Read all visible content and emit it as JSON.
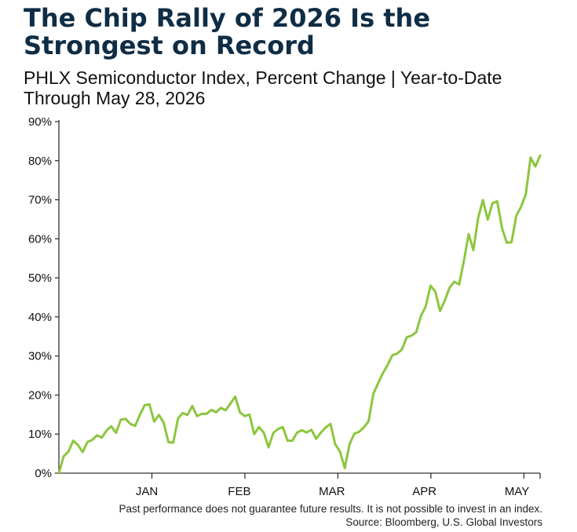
{
  "header": {
    "title": "The Chip Rally of 2026 Is the Strongest on Record",
    "subtitle_line1": "PHLX Semiconductor Index, Percent Change | Year-to-Date",
    "subtitle_line2": "Through May 28, 2026"
  },
  "footer": {
    "disclaimer": "Past performance does not guarantee future results. It is not possible to invest in an index.",
    "source": "Source: Bloomberg, U.S. Global Investors"
  },
  "colors": {
    "line": "#8cc63f",
    "axis": "#333333",
    "title": "#0f2d45"
  },
  "chart_data": {
    "type": "line",
    "title": "The Chip Rally of 2026 Is the Strongest on Record",
    "subtitle": "PHLX Semiconductor Index, Percent Change | Year-to-Date Through May 28, 2026",
    "xlabel": "",
    "ylabel": "",
    "ylim": [
      0,
      90
    ],
    "yticks": [
      0,
      10,
      20,
      30,
      40,
      50,
      60,
      70,
      80,
      90
    ],
    "ytick_labels": [
      "0%",
      "10%",
      "20%",
      "30%",
      "40%",
      "50%",
      "60%",
      "70%",
      "80%",
      "90%"
    ],
    "month_labels": [
      "JAN",
      "FEB",
      "MAR",
      "APR",
      "MAY"
    ],
    "grid": false,
    "legend": "none",
    "series": [
      {
        "values": [
          0,
          4.3,
          5.5,
          8.3,
          7.2,
          5.4,
          8,
          8.5,
          9.7,
          9.1,
          10.9,
          12,
          10.3,
          13.7,
          13.9,
          12.6,
          12.1,
          14.9,
          17.4,
          17.6,
          13.2,
          14.9,
          12.9,
          7.9,
          7.8,
          14,
          15.4,
          14.9,
          17.2,
          14.6,
          15.2,
          15.2,
          16.2,
          15.6,
          16.7,
          16.1,
          17.8,
          19.6,
          15.6,
          14.6,
          15,
          10,
          11.8,
          10.4,
          6.6,
          10.3,
          11.3,
          11.8,
          8.3,
          8.3,
          10.4,
          11,
          10.4,
          11.1,
          8.8,
          10.4,
          11.7,
          12.6,
          7.4,
          5.5,
          1.3,
          7.4,
          10.1,
          10.6,
          11.7,
          13.3,
          20.3,
          23,
          25.6,
          27.7,
          30.2,
          30.6,
          31.7,
          34.8,
          35.2,
          36.1,
          40.3,
          42.7,
          48,
          46.5,
          41.5,
          44.2,
          47.5,
          49,
          48.3,
          54.3,
          61.2,
          57.1,
          65.4,
          69.9,
          64.9,
          69.1,
          69.6,
          62.8,
          59,
          59.1,
          65.9,
          68.2,
          71.4,
          80.8,
          78.5,
          81.3
        ]
      }
    ]
  }
}
